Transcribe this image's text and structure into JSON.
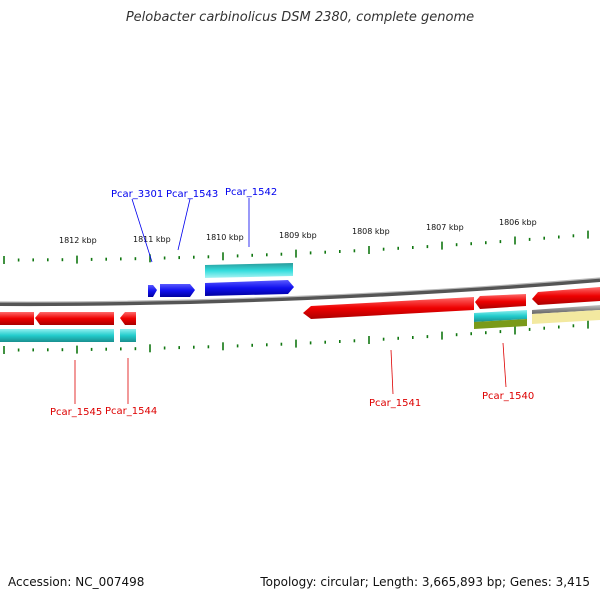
{
  "title": "Pelobacter carbinolicus DSM 2380, complete genome",
  "footer": {
    "accession": "Accession: NC_007498",
    "topology": "Topology: circular; Length: 3,665,893 bp; Genes: 3,415"
  },
  "kbp_labels": [
    "1812 kbp",
    "1811 kbp",
    "1810 kbp",
    "1809 kbp",
    "1808 kbp",
    "1807 kbp",
    "1806 kbp"
  ],
  "gene_labels": {
    "pcar_3301": "Pcar_3301",
    "pcar_1543": "Pcar_1543",
    "pcar_1542": "Pcar_1542",
    "pcar_1545": "Pcar_1545",
    "pcar_1544": "Pcar_1544",
    "pcar_1541": "Pcar_1541",
    "pcar_1540": "Pcar_1540"
  },
  "colors": {
    "highlight_gene": "#0000ee",
    "other_gene": "#ff0000",
    "cds_forward": "#1010ee",
    "cds_reverse": "#ee1111",
    "rna_track": "#22cccc",
    "olive_track": "#7a9a1a",
    "pale_track": "#f3e9a0",
    "backbone": "#888888",
    "tick": "#117711"
  }
}
